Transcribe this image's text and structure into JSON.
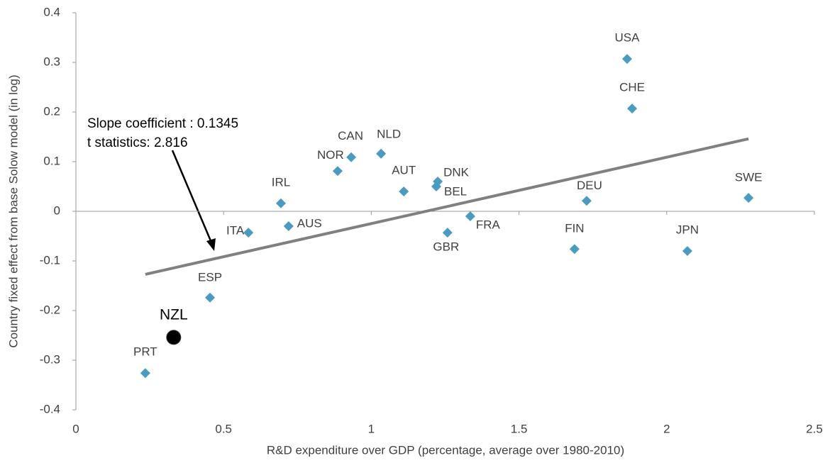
{
  "chart_data": {
    "type": "scatter",
    "x_label": "R&D expenditure over GDP (percentage, average over 1980-2010)",
    "y_label": "Country fixed effect from base Solow model (in log)",
    "annotation": [
      "Slope coefficient : 0.1345",
      "t statistics: 2.816"
    ],
    "points": {
      "color": "#4a9bbf",
      "labels": [
        "PRT",
        "ESP",
        "ITA",
        "IRL",
        "AUS",
        "NOR",
        "CAN",
        "NLD",
        "AUT",
        "DNK",
        "BEL",
        "GBR",
        "FRA",
        "FIN",
        "DEU",
        "USA",
        "CHE",
        "JPN",
        "SWE"
      ],
      "x": [
        0.235,
        0.454,
        0.584,
        0.694,
        0.72,
        0.886,
        0.932,
        1.033,
        1.11,
        1.225,
        1.22,
        1.258,
        1.335,
        1.688,
        1.729,
        1.866,
        1.883,
        2.07,
        2.277
      ],
      "y": [
        -0.326,
        -0.174,
        -0.043,
        0.016,
        -0.03,
        0.081,
        0.109,
        0.116,
        0.04,
        0.06,
        0.05,
        -0.043,
        -0.01,
        -0.076,
        0.021,
        0.307,
        0.207,
        -0.08,
        0.027
      ]
    },
    "highlight": {
      "label": "NZL",
      "x": 0.331,
      "y": -0.254,
      "color": "#000000"
    },
    "trendline": {
      "color": "#808080",
      "x": [
        0.235,
        2.277
      ],
      "y": [
        -0.127,
        0.146
      ]
    },
    "xlim": [
      0,
      2.5
    ],
    "xticks": [
      0,
      0.5,
      1,
      1.5,
      2,
      2.5
    ],
    "ylim": [
      -0.4,
      0.4
    ],
    "yticks": [
      -0.4,
      -0.3,
      -0.2,
      -0.1,
      0,
      0.1,
      0.2,
      0.3,
      0.4
    ],
    "grid": false
  }
}
